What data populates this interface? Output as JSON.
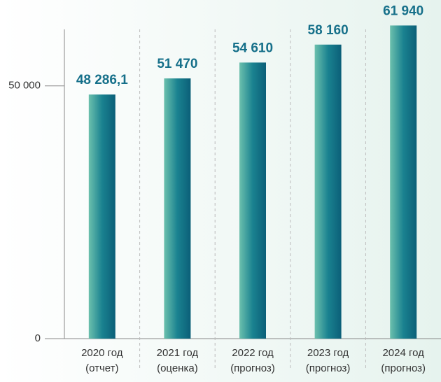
{
  "chart_data": {
    "type": "bar",
    "categories": [
      [
        "2020 год",
        "(отчет)"
      ],
      [
        "2021 год",
        "(оценка)"
      ],
      [
        "2022 год",
        "(прогноз)"
      ],
      [
        "2023 год",
        "(прогноз)"
      ],
      [
        "2024 год",
        "(прогноз)"
      ]
    ],
    "values": [
      48286.1,
      51470,
      54610,
      58160,
      61940
    ],
    "value_labels": [
      "48 286,1",
      "51 470",
      "54 610",
      "58 160",
      "61 940"
    ],
    "color": "#0f6f82",
    "ylim": [
      0,
      62000
    ],
    "yticks": [
      0,
      {
        "value": 50000,
        "label": "50 000"
      }
    ]
  }
}
